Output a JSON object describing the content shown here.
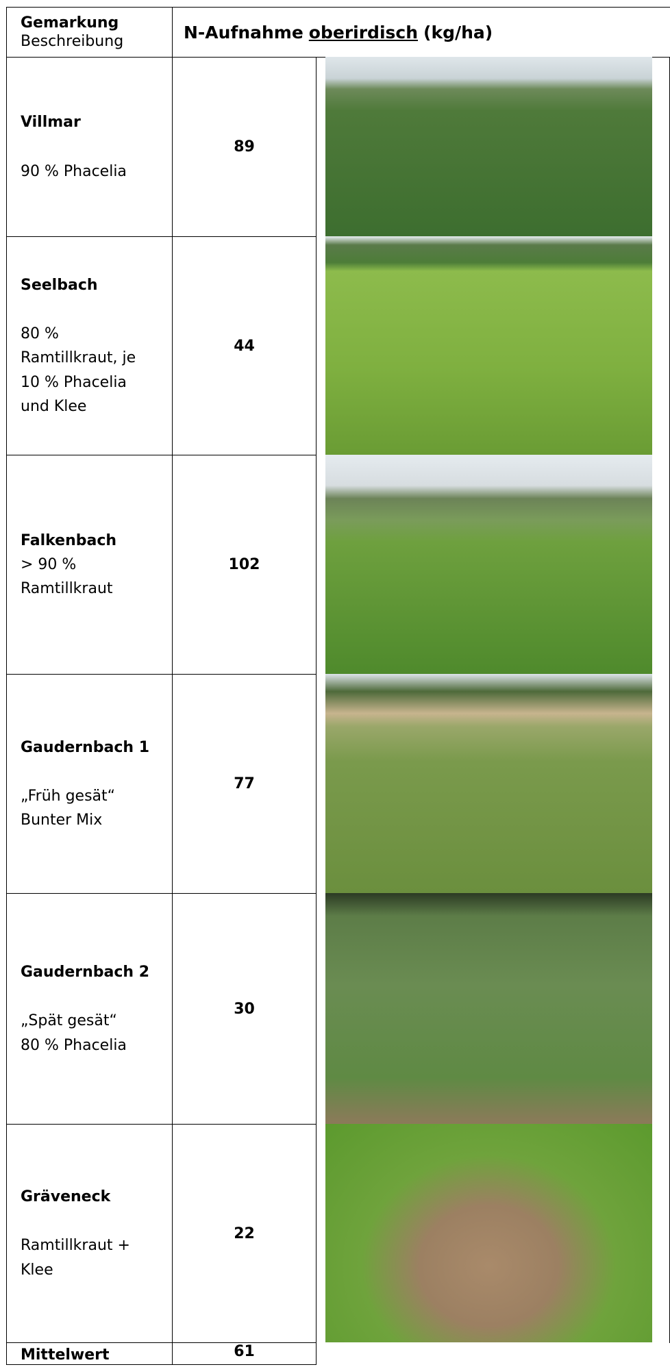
{
  "header": {
    "col1_title": "Gemarkung",
    "col1_subtitle": "Beschreibung",
    "col2_pre": "N-Aufnahme",
    "col2_underlined": "oberirdisch",
    "col2_unit": "(kg/ha)"
  },
  "rows": [
    {
      "name": "Villmar",
      "description": [
        "90 % Phacelia"
      ],
      "value": "89"
    },
    {
      "name": "Seelbach",
      "description": [
        "80 % Ramtillkraut, je 10 % Phacelia und Klee"
      ],
      "value": "44"
    },
    {
      "name": "Falkenbach",
      "description": [
        "> 90 % Ramtillkraut"
      ],
      "value": "102"
    },
    {
      "name": "Gaudernbach 1",
      "description": [
        "„Früh gesät“",
        "Bunter Mix"
      ],
      "value": "77"
    },
    {
      "name": "Gaudernbach 2",
      "description": [
        "„Spät gesät“",
        "80 % Phacelia"
      ],
      "value": "30"
    },
    {
      "name": "Gräveneck",
      "description": [
        "Ramtillkraut + Klee"
      ],
      "value": "22"
    }
  ],
  "footer": {
    "label": "Mittelwert",
    "value": "61"
  }
}
